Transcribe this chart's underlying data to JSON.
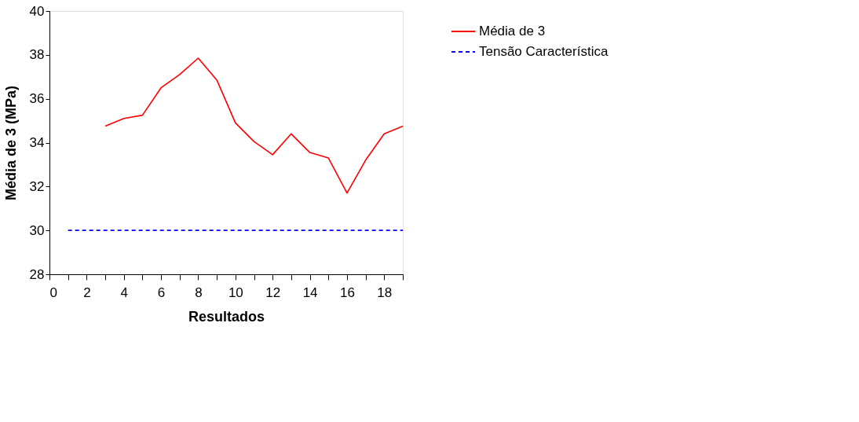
{
  "chart_data": {
    "type": "line",
    "xlabel": "Resultados",
    "ylabel": "Média de 3 (MPa)",
    "xlim": [
      0,
      19
    ],
    "ylim": [
      28,
      40
    ],
    "xticks": [
      0,
      {
        "value": 1,
        "label": null
      },
      2,
      {
        "value": 3,
        "label": null
      },
      4,
      {
        "value": 5,
        "label": null
      },
      6,
      {
        "value": 7,
        "label": null
      },
      8,
      {
        "value": 9,
        "label": null
      },
      10,
      {
        "value": 11,
        "label": null
      },
      12,
      {
        "value": 13,
        "label": null
      },
      14,
      {
        "value": 15,
        "label": null
      },
      16,
      {
        "value": 17,
        "label": null
      },
      18,
      {
        "value": 19,
        "label": null
      }
    ],
    "yticks": [
      28,
      30,
      32,
      34,
      36,
      38,
      40
    ],
    "grid": false,
    "legend": "right",
    "marker": "none",
    "series": [
      {
        "name": "Média de 3",
        "color": "#ff0000",
        "line_style": "solid",
        "x": [
          3,
          4,
          5,
          6,
          7,
          8,
          9,
          10,
          11,
          12,
          13,
          14,
          15,
          16,
          17,
          18,
          19
        ],
        "values": [
          34.75,
          35.1,
          35.25,
          36.5,
          37.1,
          37.85,
          36.85,
          34.9,
          34.05,
          33.45,
          34.4,
          33.55,
          33.3,
          31.7,
          33.2,
          34.4,
          34.75
        ]
      },
      {
        "name": "Tensão Característica",
        "color": "#0000ff",
        "line_style": "dashed",
        "x": [
          1,
          2,
          3,
          4,
          5,
          6,
          7,
          8,
          9,
          10,
          11,
          12,
          13,
          14,
          15,
          16,
          17,
          18,
          19
        ],
        "values": [
          30,
          30,
          30,
          30,
          30,
          30,
          30,
          30,
          30,
          30,
          30,
          30,
          30,
          30,
          30,
          30,
          30,
          30,
          30
        ]
      }
    ]
  }
}
